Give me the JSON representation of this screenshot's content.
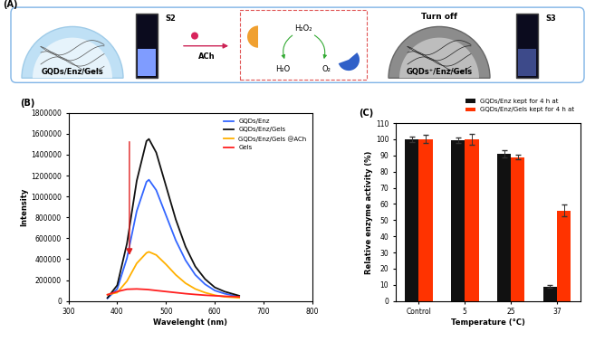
{
  "diagram": {
    "label": "(A)",
    "left": {
      "title": "GQDs/Enz/Gels",
      "cuvette": "S2"
    },
    "reagent": "ACh",
    "reaction": {
      "substrate": "H₂O₂",
      "products": [
        "H₂O",
        "O₂"
      ]
    },
    "right": {
      "status": "Turn off",
      "title": "GQDs⁺/Enz/Gels",
      "cuvette": "S3"
    }
  },
  "chart_data": [
    {
      "type": "line",
      "title": "(B)",
      "x_label": "Wavelenght (nm)",
      "y_label": "Intensity",
      "x": [
        380,
        400,
        420,
        440,
        460,
        465,
        480,
        500,
        520,
        540,
        560,
        580,
        600,
        620,
        650
      ],
      "series": [
        {
          "name": "GQDs/Enz",
          "color": "#3366ff",
          "values": [
            25000,
            115000,
            410000,
            860000,
            1140000,
            1160000,
            1060000,
            820000,
            580000,
            390000,
            250000,
            160000,
            100000,
            70000,
            40000
          ]
        },
        {
          "name": "GQDs/Enz/Gels",
          "color": "#111111",
          "values": [
            30000,
            150000,
            550000,
            1150000,
            1530000,
            1550000,
            1420000,
            1100000,
            780000,
            520000,
            330000,
            210000,
            130000,
            90000,
            50000
          ]
        },
        {
          "name": "GQDs/Enz/Gels @ACh",
          "color": "#ffb000",
          "values": [
            60000,
            80000,
            190000,
            360000,
            460000,
            470000,
            440000,
            350000,
            250000,
            170000,
            115000,
            80000,
            55000,
            40000,
            30000
          ]
        },
        {
          "name": "Gels",
          "color": "#ff2020",
          "values": [
            60000,
            90000,
            112000,
            115000,
            110000,
            108000,
            100000,
            90000,
            80000,
            70000,
            62000,
            55000,
            50000,
            45000,
            40000
          ]
        }
      ],
      "xlim": [
        300,
        800
      ],
      "xticks": [
        300,
        400,
        500,
        600,
        700,
        800
      ],
      "ylim": [
        0,
        1800000
      ],
      "yticks": [
        0,
        200000,
        400000,
        600000,
        800000,
        1000000,
        1200000,
        1400000,
        1600000,
        1800000
      ],
      "legend": "upper right"
    },
    {
      "type": "bar",
      "title": "(C)",
      "x_label": "Temperature (°C)",
      "y_label": "Relative enzyme activity (%)",
      "categories": [
        "Control",
        "5",
        "25",
        "37"
      ],
      "series": [
        {
          "name": "GQDs/Enz kept for 4 h at",
          "color": "#111111",
          "values": [
            100,
            99.5,
            91,
            9
          ],
          "errors": [
            1.5,
            1.5,
            2,
            1
          ]
        },
        {
          "name": "GQDs/Enz/Gels kept for 4 h at",
          "color": "#ff3300",
          "values": [
            100,
            100,
            89,
            56
          ],
          "errors": [
            2.5,
            3.5,
            1.5,
            3.5
          ]
        }
      ],
      "ylim": [
        0,
        110
      ],
      "yticks": [
        0,
        10,
        20,
        30,
        40,
        50,
        60,
        70,
        80,
        90,
        100,
        110
      ],
      "legend": "upper right"
    }
  ]
}
